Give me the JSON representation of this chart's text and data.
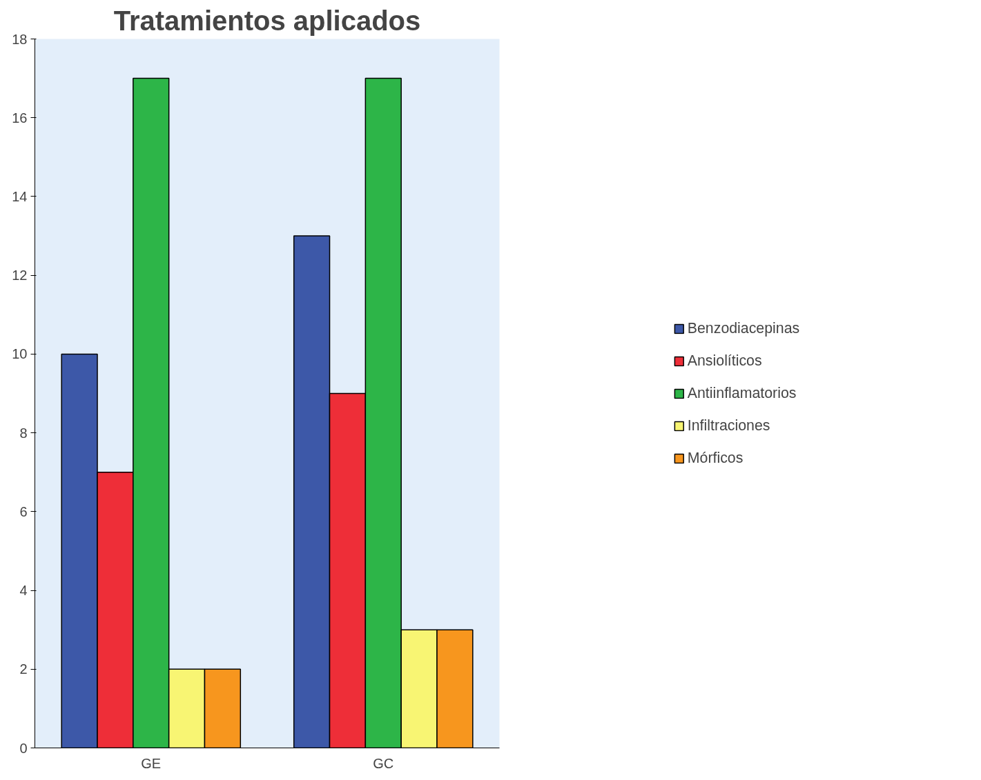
{
  "chart_data": {
    "type": "bar",
    "title": "Tratamientos aplicados",
    "categories": [
      "GE",
      "GC"
    ],
    "series": [
      {
        "name": "Benzodiacepinas",
        "color": "#3d58a8",
        "values": [
          10,
          13
        ]
      },
      {
        "name": "Ansiolíticos",
        "color": "#ee2e38",
        "values": [
          7,
          9
        ]
      },
      {
        "name": "Antiinflamatorios",
        "color": "#2db548",
        "values": [
          17,
          17
        ]
      },
      {
        "name": "Infiltraciones",
        "color": "#f8f573",
        "values": [
          2,
          3
        ]
      },
      {
        "name": "Mórficos",
        "color": "#f7961e",
        "values": [
          2,
          3
        ]
      }
    ],
    "ylim": [
      0,
      18
    ],
    "yticks": [
      0,
      2,
      4,
      6,
      8,
      10,
      12,
      14,
      16,
      18
    ],
    "legend": "right"
  }
}
